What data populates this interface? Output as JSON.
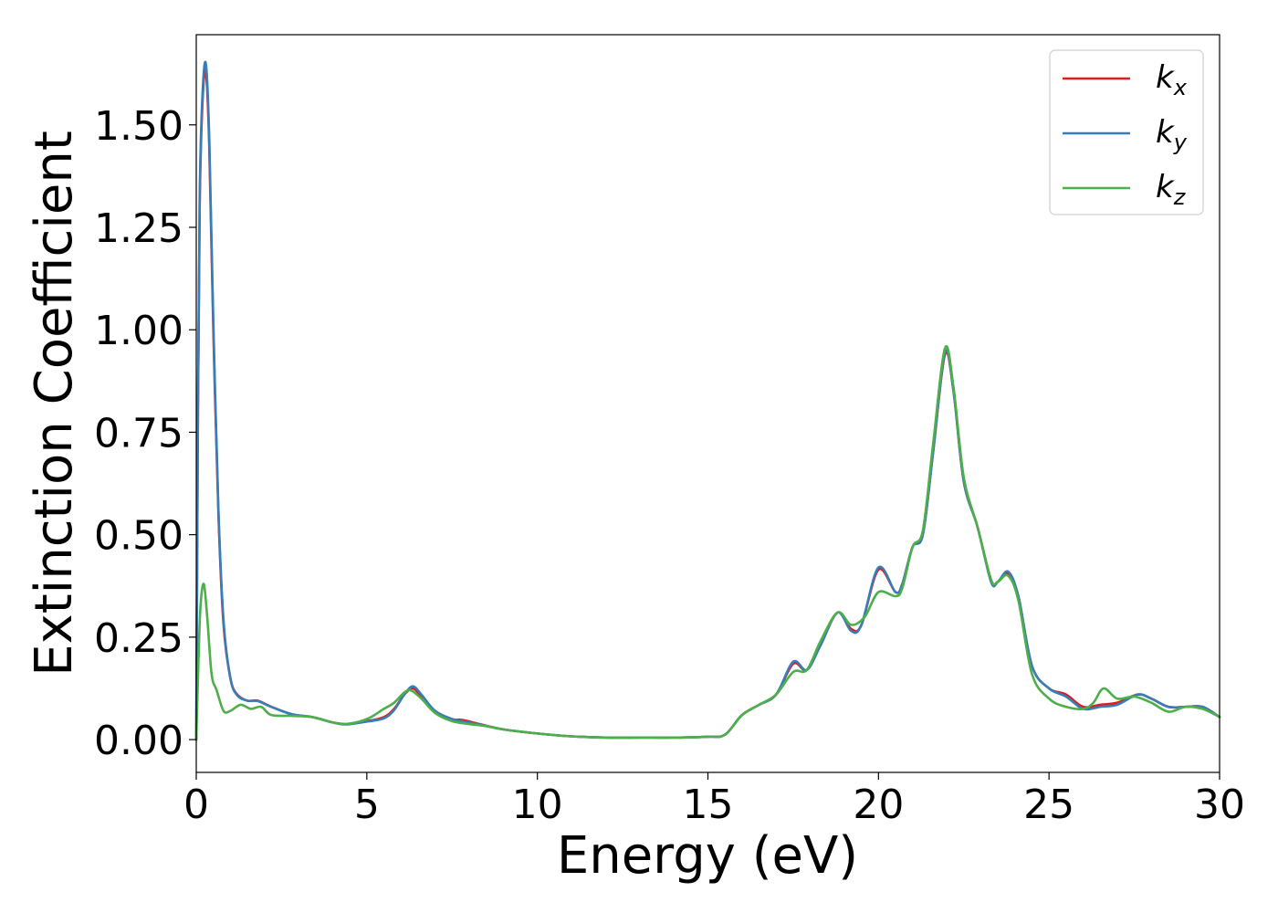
{
  "chart_data": {
    "type": "line",
    "title": "",
    "xlabel": "Energy (eV)",
    "ylabel": "Extinction Coefficient",
    "xlim": [
      0,
      30
    ],
    "ylim": [
      -0.08,
      1.72
    ],
    "xticks": [
      0,
      5,
      10,
      15,
      20,
      25,
      30
    ],
    "xtick_labels": [
      "0",
      "5",
      "10",
      "15",
      "20",
      "25",
      "30"
    ],
    "yticks": [
      0,
      0.25,
      0.5,
      0.75,
      1.0,
      1.25,
      1.5
    ],
    "ytick_labels": [
      "0.00",
      "0.25",
      "0.50",
      "0.75",
      "1.00",
      "1.25",
      "1.50"
    ],
    "grid": false,
    "legend_position": "top-right",
    "series": [
      {
        "name": "k_x",
        "legend_base": "k",
        "legend_sub": "x",
        "color": "#e41a1c",
        "points": [
          [
            0,
            0.0
          ],
          [
            0.05,
            0.8
          ],
          [
            0.1,
            1.3
          ],
          [
            0.18,
            1.55
          ],
          [
            0.28,
            1.63
          ],
          [
            0.38,
            1.45
          ],
          [
            0.5,
            1.0
          ],
          [
            0.65,
            0.55
          ],
          [
            0.8,
            0.28
          ],
          [
            1.0,
            0.15
          ],
          [
            1.2,
            0.11
          ],
          [
            1.5,
            0.095
          ],
          [
            1.8,
            0.095
          ],
          [
            2.2,
            0.08
          ],
          [
            2.8,
            0.062
          ],
          [
            3.4,
            0.055
          ],
          [
            4.0,
            0.042
          ],
          [
            4.4,
            0.038
          ],
          [
            5.0,
            0.045
          ],
          [
            5.5,
            0.055
          ],
          [
            5.8,
            0.075
          ],
          [
            6.1,
            0.11
          ],
          [
            6.35,
            0.125
          ],
          [
            6.6,
            0.105
          ],
          [
            7.0,
            0.07
          ],
          [
            7.5,
            0.05
          ],
          [
            7.8,
            0.048
          ],
          [
            8.3,
            0.038
          ],
          [
            9.0,
            0.025
          ],
          [
            10.0,
            0.015
          ],
          [
            11.0,
            0.008
          ],
          [
            12.0,
            0.005
          ],
          [
            13.0,
            0.005
          ],
          [
            14.0,
            0.005
          ],
          [
            15.0,
            0.007
          ],
          [
            15.5,
            0.012
          ],
          [
            16.0,
            0.06
          ],
          [
            16.5,
            0.085
          ],
          [
            17.0,
            0.11
          ],
          [
            17.5,
            0.185
          ],
          [
            17.9,
            0.17
          ],
          [
            18.3,
            0.23
          ],
          [
            18.8,
            0.31
          ],
          [
            19.2,
            0.27
          ],
          [
            19.5,
            0.28
          ],
          [
            20.0,
            0.415
          ],
          [
            20.5,
            0.36
          ],
          [
            20.7,
            0.38
          ],
          [
            21.0,
            0.47
          ],
          [
            21.3,
            0.5
          ],
          [
            21.6,
            0.7
          ],
          [
            21.95,
            0.94
          ],
          [
            22.2,
            0.85
          ],
          [
            22.5,
            0.63
          ],
          [
            22.9,
            0.52
          ],
          [
            23.3,
            0.39
          ],
          [
            23.5,
            0.385
          ],
          [
            23.8,
            0.405
          ],
          [
            24.1,
            0.35
          ],
          [
            24.5,
            0.18
          ],
          [
            25.0,
            0.125
          ],
          [
            25.5,
            0.11
          ],
          [
            26.0,
            0.08
          ],
          [
            26.5,
            0.085
          ],
          [
            27.0,
            0.09
          ],
          [
            27.6,
            0.11
          ],
          [
            28.0,
            0.1
          ],
          [
            28.5,
            0.08
          ],
          [
            29.0,
            0.08
          ],
          [
            29.5,
            0.08
          ],
          [
            30.0,
            0.055
          ]
        ]
      },
      {
        "name": "k_y",
        "legend_base": "k",
        "legend_sub": "y",
        "color": "#377eb8",
        "points": [
          [
            0,
            0.0
          ],
          [
            0.05,
            0.82
          ],
          [
            0.1,
            1.32
          ],
          [
            0.18,
            1.57
          ],
          [
            0.28,
            1.65
          ],
          [
            0.38,
            1.47
          ],
          [
            0.5,
            1.02
          ],
          [
            0.65,
            0.56
          ],
          [
            0.8,
            0.29
          ],
          [
            1.0,
            0.15
          ],
          [
            1.2,
            0.108
          ],
          [
            1.5,
            0.095
          ],
          [
            1.8,
            0.094
          ],
          [
            2.2,
            0.08
          ],
          [
            2.8,
            0.062
          ],
          [
            3.4,
            0.055
          ],
          [
            4.0,
            0.042
          ],
          [
            4.4,
            0.037
          ],
          [
            5.0,
            0.044
          ],
          [
            5.5,
            0.052
          ],
          [
            5.8,
            0.072
          ],
          [
            6.1,
            0.11
          ],
          [
            6.35,
            0.13
          ],
          [
            6.6,
            0.11
          ],
          [
            7.0,
            0.07
          ],
          [
            7.5,
            0.05
          ],
          [
            7.8,
            0.045
          ],
          [
            8.3,
            0.037
          ],
          [
            9.0,
            0.025
          ],
          [
            10.0,
            0.015
          ],
          [
            11.0,
            0.008
          ],
          [
            12.0,
            0.005
          ],
          [
            13.0,
            0.005
          ],
          [
            14.0,
            0.005
          ],
          [
            15.0,
            0.007
          ],
          [
            15.5,
            0.012
          ],
          [
            16.0,
            0.06
          ],
          [
            16.5,
            0.085
          ],
          [
            17.0,
            0.11
          ],
          [
            17.5,
            0.19
          ],
          [
            17.9,
            0.17
          ],
          [
            18.3,
            0.23
          ],
          [
            18.8,
            0.31
          ],
          [
            19.2,
            0.265
          ],
          [
            19.5,
            0.28
          ],
          [
            20.0,
            0.42
          ],
          [
            20.5,
            0.36
          ],
          [
            20.7,
            0.38
          ],
          [
            21.0,
            0.47
          ],
          [
            21.3,
            0.5
          ],
          [
            21.6,
            0.7
          ],
          [
            21.95,
            0.945
          ],
          [
            22.2,
            0.85
          ],
          [
            22.5,
            0.63
          ],
          [
            22.9,
            0.52
          ],
          [
            23.3,
            0.385
          ],
          [
            23.5,
            0.385
          ],
          [
            23.8,
            0.41
          ],
          [
            24.1,
            0.35
          ],
          [
            24.5,
            0.18
          ],
          [
            25.0,
            0.125
          ],
          [
            25.5,
            0.105
          ],
          [
            26.0,
            0.075
          ],
          [
            26.5,
            0.08
          ],
          [
            27.0,
            0.085
          ],
          [
            27.6,
            0.11
          ],
          [
            28.0,
            0.1
          ],
          [
            28.5,
            0.08
          ],
          [
            29.0,
            0.08
          ],
          [
            29.5,
            0.08
          ],
          [
            30.0,
            0.055
          ]
        ]
      },
      {
        "name": "k_z",
        "legend_base": "k",
        "legend_sub": "z",
        "color": "#4daf4a",
        "points": [
          [
            0,
            0.0
          ],
          [
            0.05,
            0.15
          ],
          [
            0.12,
            0.32
          ],
          [
            0.22,
            0.38
          ],
          [
            0.32,
            0.3
          ],
          [
            0.45,
            0.16
          ],
          [
            0.6,
            0.12
          ],
          [
            0.8,
            0.07
          ],
          [
            1.0,
            0.07
          ],
          [
            1.3,
            0.085
          ],
          [
            1.6,
            0.075
          ],
          [
            1.9,
            0.08
          ],
          [
            2.2,
            0.06
          ],
          [
            2.8,
            0.058
          ],
          [
            3.4,
            0.055
          ],
          [
            4.0,
            0.042
          ],
          [
            4.4,
            0.038
          ],
          [
            5.0,
            0.05
          ],
          [
            5.5,
            0.075
          ],
          [
            5.8,
            0.09
          ],
          [
            6.1,
            0.115
          ],
          [
            6.3,
            0.12
          ],
          [
            6.6,
            0.1
          ],
          [
            7.0,
            0.065
          ],
          [
            7.5,
            0.045
          ],
          [
            8.0,
            0.038
          ],
          [
            8.5,
            0.033
          ],
          [
            9.0,
            0.025
          ],
          [
            10.0,
            0.015
          ],
          [
            11.0,
            0.008
          ],
          [
            12.0,
            0.005
          ],
          [
            13.0,
            0.005
          ],
          [
            14.0,
            0.005
          ],
          [
            15.0,
            0.007
          ],
          [
            15.5,
            0.012
          ],
          [
            16.0,
            0.06
          ],
          [
            16.5,
            0.085
          ],
          [
            17.0,
            0.11
          ],
          [
            17.5,
            0.165
          ],
          [
            17.9,
            0.17
          ],
          [
            18.3,
            0.24
          ],
          [
            18.8,
            0.31
          ],
          [
            19.2,
            0.28
          ],
          [
            19.6,
            0.3
          ],
          [
            20.0,
            0.36
          ],
          [
            20.5,
            0.35
          ],
          [
            20.7,
            0.37
          ],
          [
            21.0,
            0.47
          ],
          [
            21.3,
            0.51
          ],
          [
            21.6,
            0.72
          ],
          [
            21.95,
            0.955
          ],
          [
            22.2,
            0.86
          ],
          [
            22.5,
            0.64
          ],
          [
            22.9,
            0.52
          ],
          [
            23.3,
            0.39
          ],
          [
            23.5,
            0.385
          ],
          [
            23.8,
            0.4
          ],
          [
            24.1,
            0.34
          ],
          [
            24.5,
            0.16
          ],
          [
            25.0,
            0.1
          ],
          [
            25.5,
            0.08
          ],
          [
            26.0,
            0.075
          ],
          [
            26.3,
            0.09
          ],
          [
            26.6,
            0.125
          ],
          [
            27.0,
            0.1
          ],
          [
            27.5,
            0.105
          ],
          [
            28.0,
            0.09
          ],
          [
            28.5,
            0.068
          ],
          [
            29.0,
            0.08
          ],
          [
            29.5,
            0.075
          ],
          [
            30.0,
            0.055
          ]
        ]
      }
    ]
  }
}
